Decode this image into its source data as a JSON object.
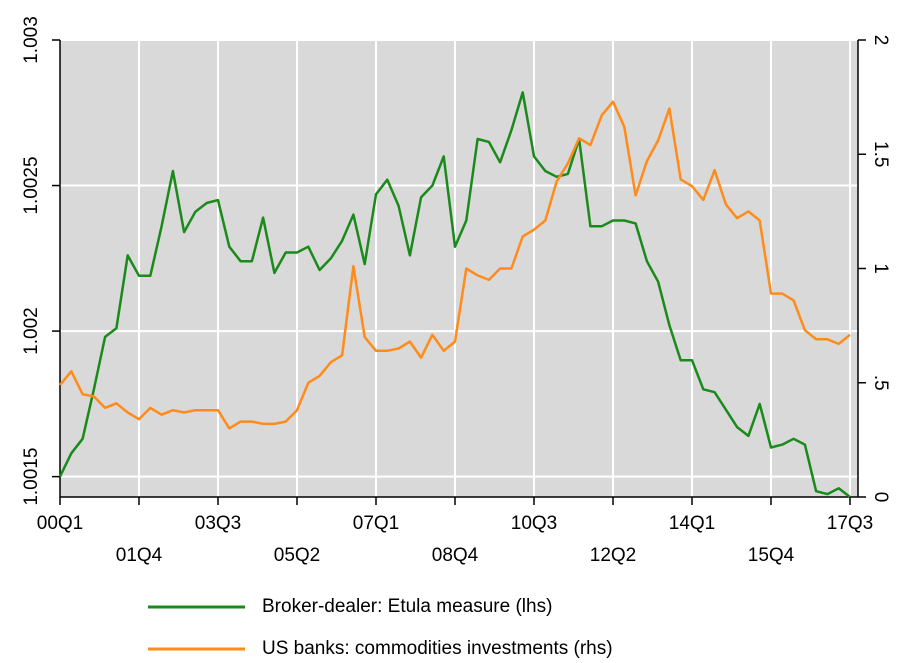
{
  "chart_data": {
    "type": "line",
    "categories": [
      "00Q1",
      null,
      null,
      null,
      null,
      null,
      null,
      "01Q4",
      null,
      null,
      null,
      null,
      null,
      null,
      "03Q3",
      null,
      null,
      null,
      null,
      null,
      null,
      "05Q2",
      null,
      null,
      null,
      null,
      null,
      null,
      "07Q1",
      null,
      null,
      null,
      null,
      null,
      null,
      "08Q4",
      null,
      null,
      null,
      null,
      null,
      null,
      "10Q3",
      null,
      null,
      null,
      null,
      null,
      null,
      "12Q2",
      null,
      null,
      null,
      null,
      null,
      null,
      "14Q1",
      null,
      null,
      null,
      null,
      null,
      null,
      "15Q4",
      null,
      null,
      null,
      null,
      null,
      null,
      "17Q3"
    ],
    "series": [
      {
        "name": "Broker-dealer: Etula measure (lhs)",
        "color": "#1a8a1a",
        "axis": "y",
        "values": [
          1.0015,
          1.00158,
          1.00163,
          1.0018,
          1.00198,
          1.00201,
          1.00226,
          1.00219,
          1.00219,
          1.00236,
          1.00255,
          1.00234,
          1.00241,
          1.00244,
          1.00245,
          1.00229,
          1.00224,
          1.00224,
          1.00239,
          1.0022,
          1.00227,
          1.00227,
          1.00229,
          1.00221,
          1.00225,
          1.00231,
          1.0024,
          1.00223,
          1.00247,
          1.00252,
          1.00243,
          1.00226,
          1.00246,
          1.0025,
          1.0026,
          1.00229,
          1.00238,
          1.00266,
          1.00265,
          1.00258,
          1.00269,
          1.00282,
          1.0026,
          1.00255,
          1.00253,
          1.00254,
          1.00266,
          1.00236,
          1.00236,
          1.00238,
          1.00238,
          1.00237,
          1.00224,
          1.00217,
          1.00202,
          1.0019,
          1.0019,
          1.0018,
          1.00179,
          1.00173,
          1.00167,
          1.00164,
          1.00175,
          1.0016,
          1.00161,
          1.00163,
          1.00161,
          1.00145,
          1.00144,
          1.00146,
          1.00143
        ]
      },
      {
        "name": "US banks: commodities investments (rhs)",
        "color": "#ff8c1a",
        "axis": "y2",
        "values": [
          0.49,
          0.55,
          0.45,
          0.44,
          0.39,
          0.41,
          0.37,
          0.34,
          0.39,
          0.36,
          0.38,
          0.37,
          0.38,
          0.38,
          0.38,
          0.3,
          0.33,
          0.33,
          0.32,
          0.32,
          0.33,
          0.38,
          0.5,
          0.53,
          0.59,
          0.62,
          1.01,
          0.7,
          0.64,
          0.64,
          0.65,
          0.68,
          0.61,
          0.71,
          0.64,
          0.68,
          1.0,
          0.97,
          0.95,
          1.0,
          1.0,
          1.14,
          1.17,
          1.21,
          1.38,
          1.46,
          1.57,
          1.54,
          1.67,
          1.73,
          1.62,
          1.32,
          1.47,
          1.56,
          1.7,
          1.39,
          1.36,
          1.3,
          1.43,
          1.28,
          1.22,
          1.25,
          1.21,
          0.89,
          0.89,
          0.86,
          0.73,
          0.69,
          0.69,
          0.67,
          0.71
        ]
      }
    ],
    "ylim": [
      1.00143,
      1.003
    ],
    "yticks": [
      1.0015,
      1.002,
      1.0025,
      1.003
    ],
    "y2lim": [
      0,
      2
    ],
    "y2ticks": [
      0,
      {
        "value": 0.5,
        "label": ".5"
      },
      1,
      1.5,
      2
    ],
    "grid": true,
    "legend": "bottom"
  }
}
